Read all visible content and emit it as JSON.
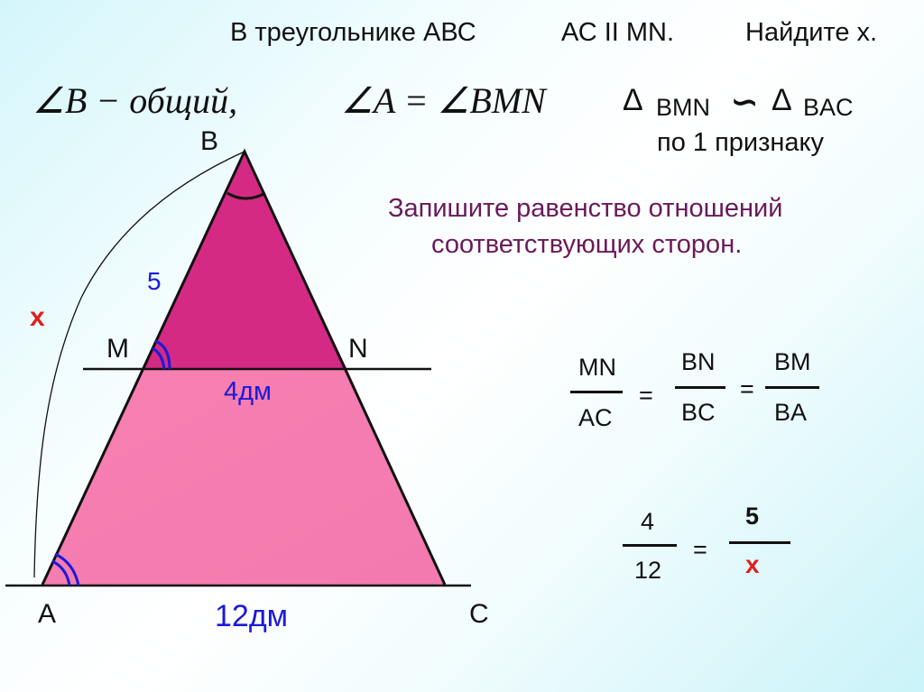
{
  "title": {
    "part1": "В треугольнике АВС",
    "part2": "АС II MN.",
    "part3": "Найдите х."
  },
  "statements": {
    "angle_b": "∠B − общий,",
    "angle_a": "∠A = ∠BMN",
    "similar": {
      "delta1": "Δ",
      "tri1": "BMN",
      "sim": "∽",
      "delta2": "Δ",
      "tri2": "BAC",
      "reason": "по 1 признаку"
    }
  },
  "instruction": [
    "Запишите равенство отношений",
    "соответствующих сторон."
  ],
  "figure": {
    "labels": {
      "B": "В",
      "M": "M",
      "N": "N",
      "A": "А",
      "C": "С"
    },
    "side_bm": "5",
    "side_ba": "x",
    "side_mn": "4дм",
    "side_ac": "12дм",
    "colors": {
      "small_triangle": "#d42a84",
      "trapezoid": "#f57fb0",
      "angle_marks": "#1a1ad8",
      "x_color": "#e0201a"
    }
  },
  "ratios": {
    "f1": {
      "num": "MN",
      "den": "AC"
    },
    "eq1": "=",
    "f2": {
      "num": "BN",
      "den": "BC"
    },
    "eq2": "=",
    "f3": {
      "num": "BM",
      "den": "BA"
    }
  },
  "equation": {
    "f1": {
      "num": "4",
      "den": "12"
    },
    "eq": "=",
    "f2": {
      "num": "5",
      "den": "x"
    }
  }
}
